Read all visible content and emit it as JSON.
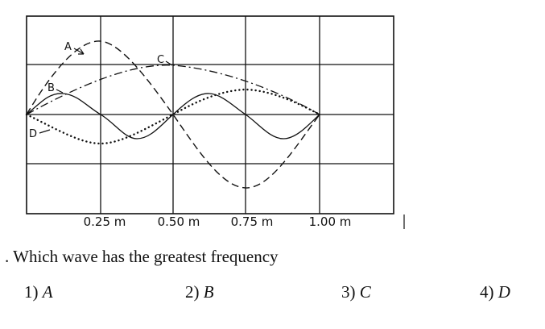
{
  "figure": {
    "tick_labels": [
      "0.25 m",
      "0.50 m",
      "0.75 m",
      "1.00 m"
    ],
    "wave_labels": [
      "A",
      "B",
      "C",
      "D"
    ]
  },
  "question": {
    "text": ". Which wave has the greatest frequency"
  },
  "choices": [
    {
      "number": "1)",
      "letter": "A"
    },
    {
      "number": "2)",
      "letter": "B"
    },
    {
      "number": "3)",
      "letter": "C"
    },
    {
      "number": "4)",
      "letter": "D"
    }
  ]
}
